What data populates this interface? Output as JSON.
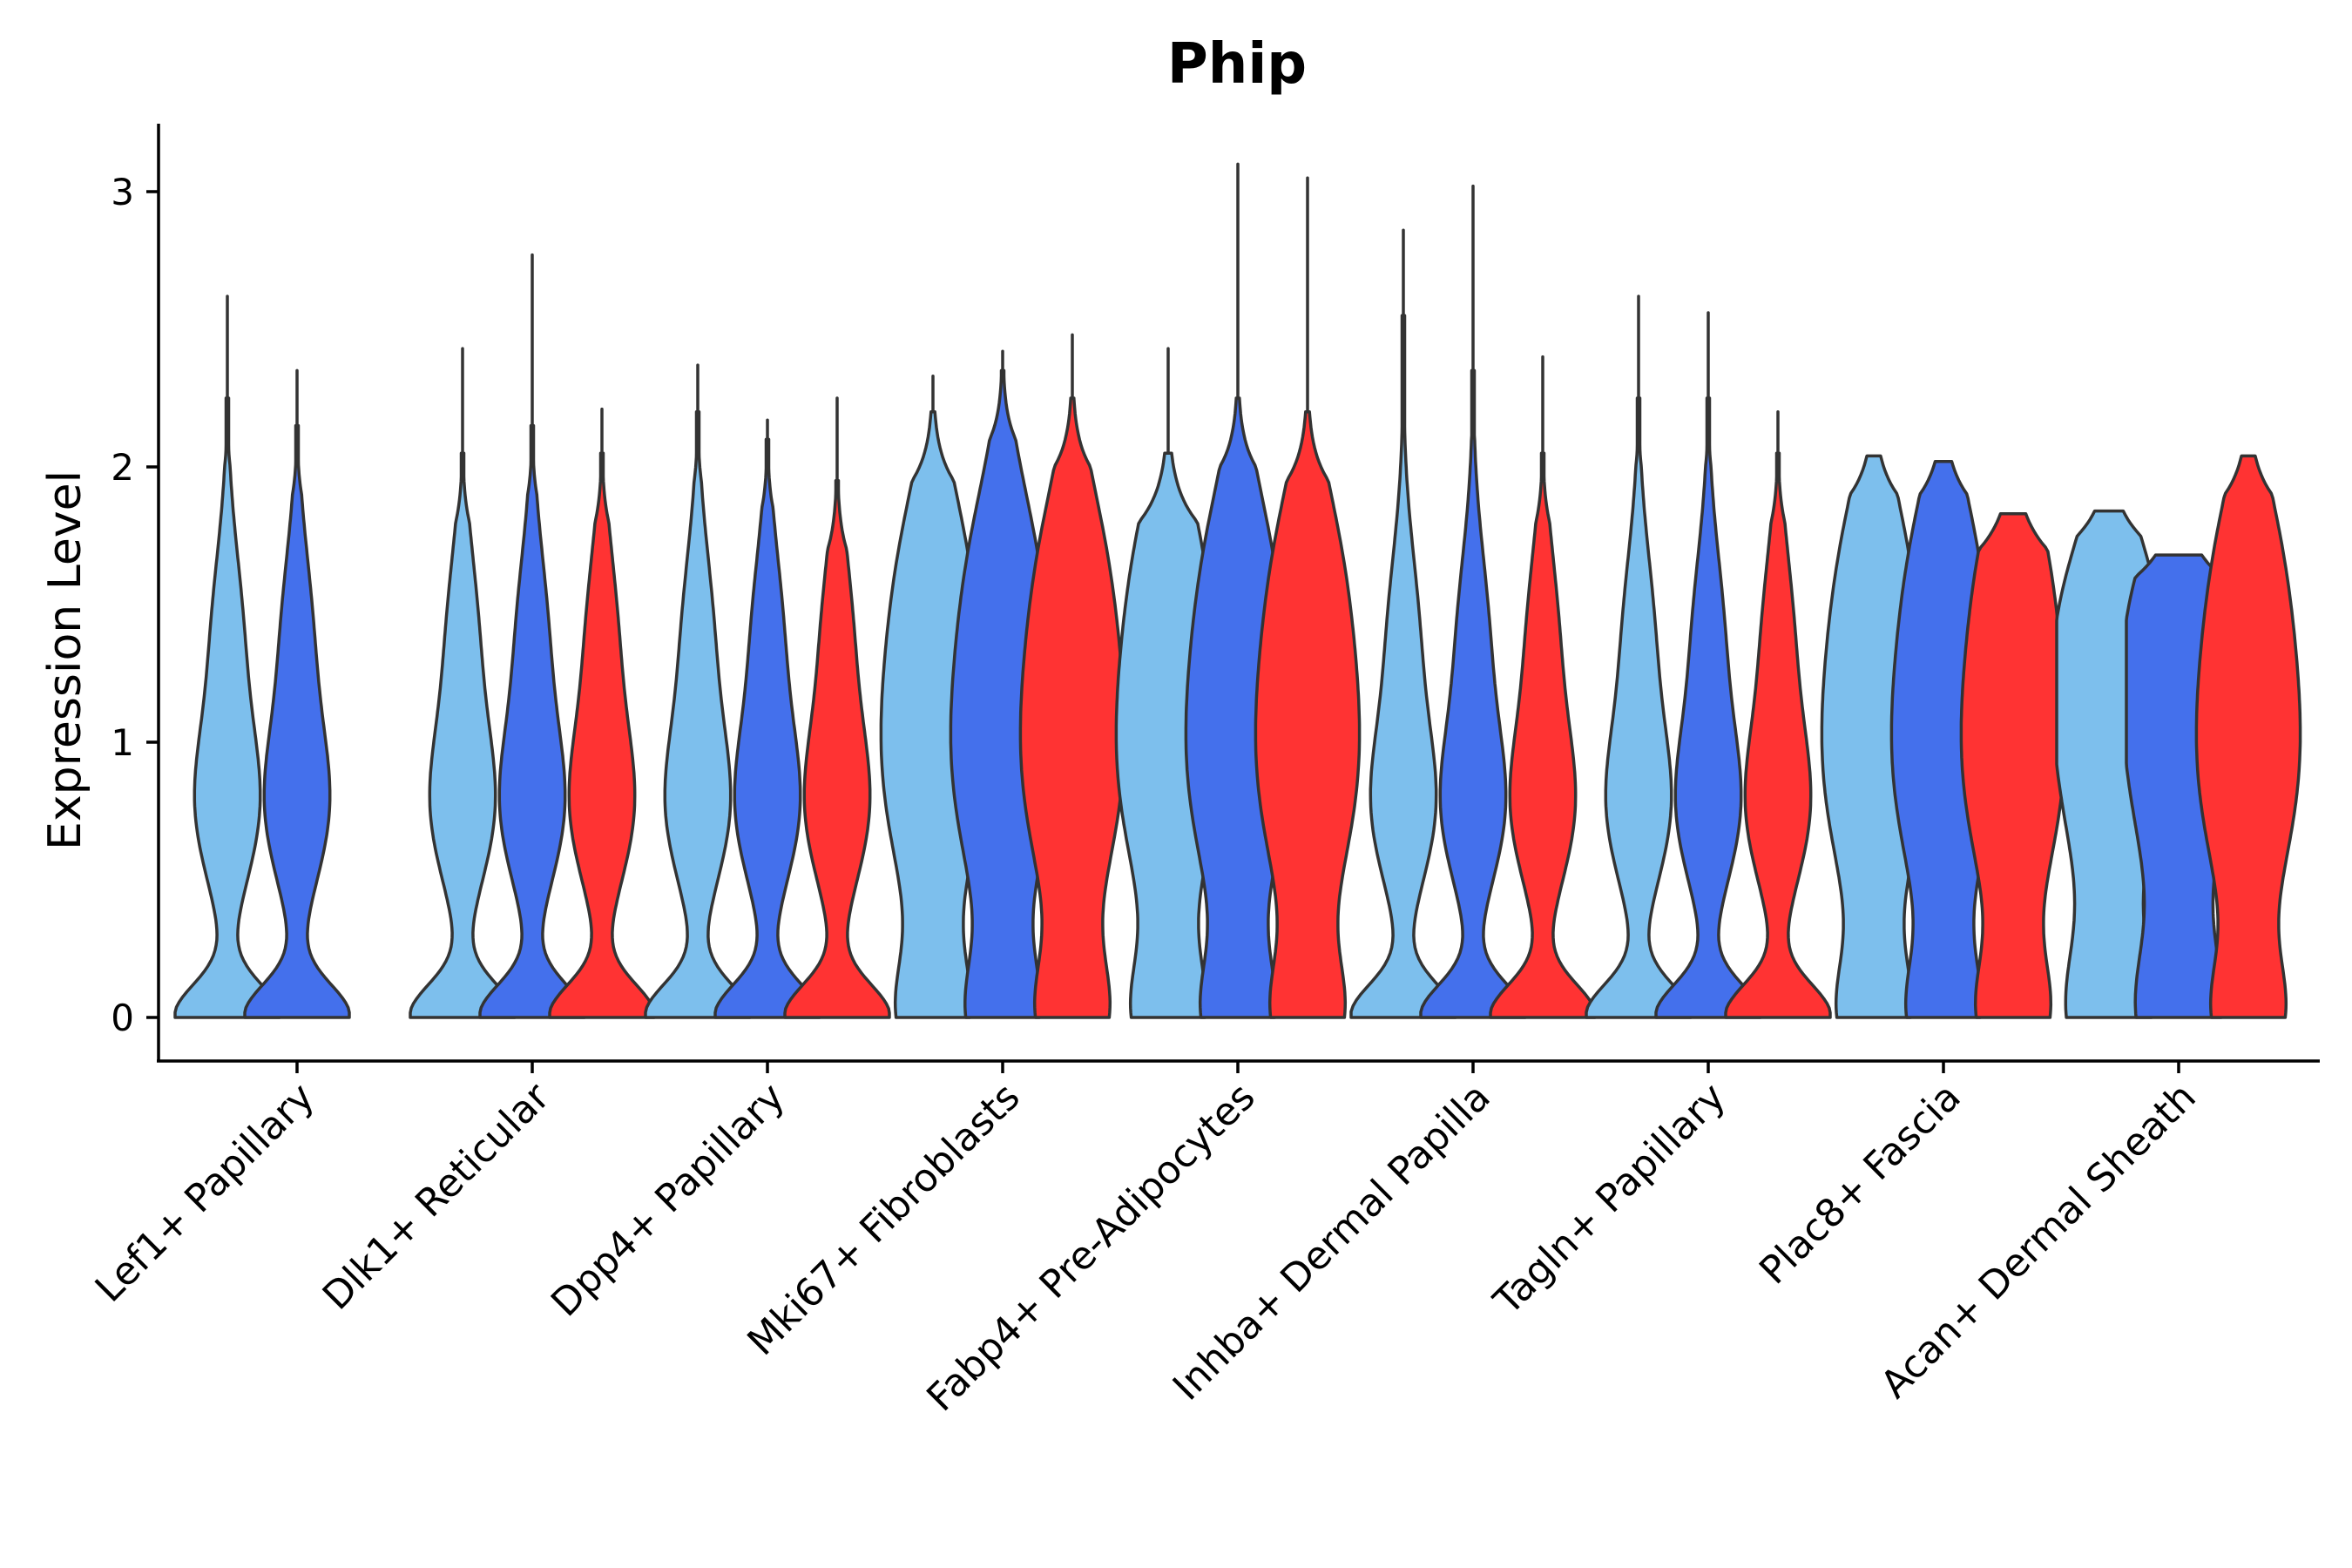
{
  "chart_data": {
    "type": "violin",
    "title": "Phip",
    "xlabel": "",
    "ylabel": "Expression Level",
    "ylim": [
      -0.15,
      3.25
    ],
    "yticks": [
      0,
      1,
      2,
      3
    ],
    "ytick_labels": [
      "0",
      "1",
      "2",
      "3"
    ],
    "grid": false,
    "legend": "none",
    "group_colors": [
      "#7DBFED",
      "#4470EC",
      "#FF3333"
    ],
    "categories": [
      "Lef1+ Papillary",
      "Dlk1+ Reticular",
      "Dpp4+ Papillary",
      "Mki67+ Fibroblasts",
      "Fabp4+ Pre-Adipocytes",
      "Inhba+ Dermal Papilla",
      "Tagln+ Papillary",
      "Plac8+ Fascia",
      "Acan+ Dermal Sheath"
    ],
    "violins": [
      {
        "category": "Lef1+ Papillary",
        "group": 0,
        "max": 2.62,
        "tail": 2.0,
        "shape": "bimodal"
      },
      {
        "category": "Lef1+ Papillary",
        "group": 1,
        "max": 2.35,
        "tail": 1.9,
        "shape": "bimodal"
      },
      {
        "category": "Dlk1+ Reticular",
        "group": 0,
        "max": 2.43,
        "tail": 1.8,
        "shape": "bimodal"
      },
      {
        "category": "Dlk1+ Reticular",
        "group": 1,
        "max": 2.77,
        "tail": 1.9,
        "shape": "bimodal"
      },
      {
        "category": "Dlk1+ Reticular",
        "group": 2,
        "max": 2.21,
        "tail": 1.8,
        "shape": "bimodal"
      },
      {
        "category": "Dpp4+ Papillary",
        "group": 0,
        "max": 2.37,
        "tail": 1.95,
        "shape": "bimodal"
      },
      {
        "category": "Dpp4+ Papillary",
        "group": 1,
        "max": 2.17,
        "tail": 1.85,
        "shape": "bimodal"
      },
      {
        "category": "Dpp4+ Papillary",
        "group": 2,
        "max": 2.25,
        "tail": 1.7,
        "shape": "bimodal"
      },
      {
        "category": "Mki67+ Fibroblasts",
        "group": 0,
        "max": 2.33,
        "tail": 1.95,
        "shape": "broad"
      },
      {
        "category": "Mki67+ Fibroblasts",
        "group": 1,
        "max": 2.42,
        "tail": 2.1,
        "shape": "broad"
      },
      {
        "category": "Mki67+ Fibroblasts",
        "group": 2,
        "max": 2.48,
        "tail": 2.0,
        "shape": "broad"
      },
      {
        "category": "Fabp4+ Pre-Adipocytes",
        "group": 0,
        "max": 2.43,
        "tail": 1.8,
        "shape": "broad"
      },
      {
        "category": "Fabp4+ Pre-Adipocytes",
        "group": 1,
        "max": 3.1,
        "tail": 2.0,
        "shape": "broad"
      },
      {
        "category": "Fabp4+ Pre-Adipocytes",
        "group": 2,
        "max": 3.05,
        "tail": 1.95,
        "shape": "broad"
      },
      {
        "category": "Inhba+ Dermal Papilla",
        "group": 0,
        "max": 2.86,
        "tail": 2.3,
        "shape": "bimodal"
      },
      {
        "category": "Inhba+ Dermal Papilla",
        "group": 1,
        "max": 3.02,
        "tail": 2.1,
        "shape": "bimodal"
      },
      {
        "category": "Inhba+ Dermal Papilla",
        "group": 2,
        "max": 2.4,
        "tail": 1.8,
        "shape": "bimodal"
      },
      {
        "category": "Tagln+ Papillary",
        "group": 0,
        "max": 2.62,
        "tail": 2.0,
        "shape": "bimodal"
      },
      {
        "category": "Tagln+ Papillary",
        "group": 1,
        "max": 2.56,
        "tail": 2.0,
        "shape": "bimodal"
      },
      {
        "category": "Tagln+ Papillary",
        "group": 2,
        "max": 2.2,
        "tail": 1.8,
        "shape": "bimodal"
      },
      {
        "category": "Plac8+ Fascia",
        "group": 0,
        "max": 2.04,
        "tail": 1.9,
        "shape": "broad"
      },
      {
        "category": "Plac8+ Fascia",
        "group": 1,
        "max": 2.02,
        "tail": 1.9,
        "shape": "broad"
      },
      {
        "category": "Plac8+ Fascia",
        "group": 2,
        "max": 1.83,
        "tail": 1.7,
        "shape": "broad"
      },
      {
        "category": "Acan+ Dermal Sheath",
        "group": 0,
        "max": 1.84,
        "tail": 1.75,
        "shape": "flat"
      },
      {
        "category": "Acan+ Dermal Sheath",
        "group": 1,
        "max": 1.68,
        "tail": 1.6,
        "shape": "flat"
      },
      {
        "category": "Acan+ Dermal Sheath",
        "group": 2,
        "max": 2.04,
        "tail": 1.9,
        "shape": "broad"
      }
    ]
  }
}
